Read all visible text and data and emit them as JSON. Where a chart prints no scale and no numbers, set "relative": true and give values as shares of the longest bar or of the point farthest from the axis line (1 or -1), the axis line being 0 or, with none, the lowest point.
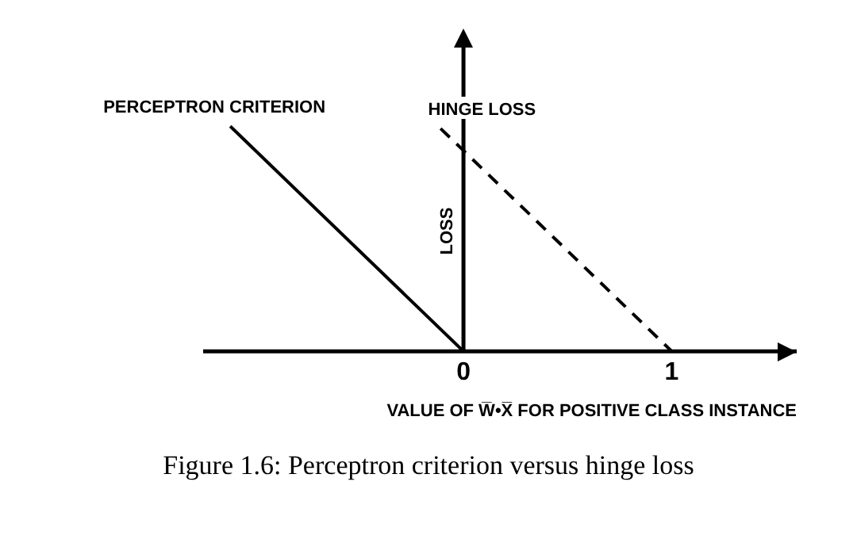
{
  "chart_data": {
    "type": "line",
    "relative": true,
    "xlabel": "VALUE OF W̅•X̅ FOR POSITIVE CLASS INSTANCE",
    "ylabel": "LOSS",
    "xlim": [
      -1.25,
      1.6
    ],
    "xticks": [
      0,
      1
    ],
    "tick_labels": "x",
    "legend": false,
    "marker": "none",
    "annotations": [
      "Figure 1.6: Perceptron criterion versus hinge loss"
    ],
    "series": [
      {
        "name": "PERCEPTRON CRITERION",
        "color": "#000000",
        "line_style": "solid",
        "x": [
          -1.12,
          0
        ],
        "values": [
          1,
          0
        ]
      },
      {
        "name": "HINGE LOSS",
        "color": "#000000",
        "line_style": "dashed",
        "x": [
          -0.11,
          1
        ],
        "values": [
          0.99,
          0
        ]
      }
    ]
  }
}
